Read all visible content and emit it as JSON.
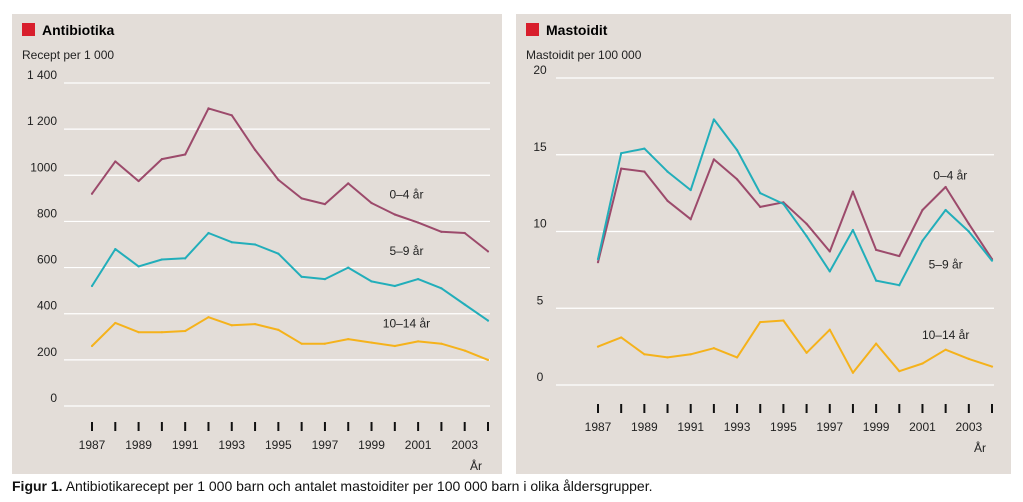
{
  "colors": {
    "series_0_4": "#9c4a6b",
    "series_5_9": "#22aeba",
    "series_10_14": "#f5b21b",
    "title_square": "#d81e2c",
    "gridline": "#ffffff",
    "panel_bg": "#e3ddd8"
  },
  "caption": {
    "label": "Figur 1.",
    "text": "Antibiotikarecept per 1 000 barn och antalet mastoiditer per 100 000 barn i olika åldersgrupper."
  },
  "chart_data": [
    {
      "type": "line",
      "title": "Antibiotika",
      "ylabel": "Recept per 1 000",
      "xlabel": "År",
      "ylim": [
        0,
        1400
      ],
      "yticks": [
        0,
        200,
        400,
        600,
        800,
        1000,
        1200,
        1400
      ],
      "ytick_labels": [
        "0",
        "200",
        "400",
        "600",
        "800",
        "1000",
        "1 200",
        "1 400"
      ],
      "xlim": [
        1987,
        2004
      ],
      "xtick_labels": [
        "1987",
        "1989",
        "1991",
        "1993",
        "1995",
        "1997",
        "1999",
        "2001",
        "2003"
      ],
      "x": [
        1987,
        1988,
        1989,
        1990,
        1991,
        1992,
        1993,
        1994,
        1995,
        1996,
        1997,
        1998,
        1999,
        2000,
        2001,
        2002,
        2003,
        2004
      ],
      "series": [
        {
          "name": "0–4 år",
          "color_key": "series_0_4",
          "values": [
            920,
            1060,
            975,
            1070,
            1090,
            1290,
            1260,
            1110,
            980,
            900,
            875,
            965,
            880,
            830,
            795,
            755,
            750,
            670
          ]
        },
        {
          "name": "5–9 år",
          "color_key": "series_5_9",
          "values": [
            520,
            680,
            605,
            635,
            640,
            750,
            710,
            700,
            660,
            560,
            550,
            600,
            540,
            520,
            550,
            510,
            440,
            370
          ]
        },
        {
          "name": "10–14 år",
          "color_key": "series_10_14",
          "values": [
            260,
            360,
            320,
            320,
            325,
            385,
            350,
            355,
            330,
            270,
            270,
            290,
            275,
            260,
            280,
            270,
            240,
            200
          ]
        }
      ],
      "series_label_anchor": [
        {
          "name": "0–4 år",
          "x": 2000.5,
          "y": 900
        },
        {
          "name": "5–9 år",
          "x": 2000.5,
          "y": 655
        },
        {
          "name": "10–14 år",
          "x": 2000.5,
          "y": 340
        }
      ]
    },
    {
      "type": "line",
      "title": "Mastoidit",
      "ylabel": "Mastoidit per 100 000",
      "xlabel": "År",
      "ylim": [
        0,
        20
      ],
      "yticks": [
        0,
        5,
        10,
        15,
        20
      ],
      "ytick_labels": [
        "0",
        "5",
        "10",
        "15",
        "20"
      ],
      "xlim": [
        1987,
        2004
      ],
      "xtick_labels": [
        "1987",
        "1989",
        "1991",
        "1993",
        "1995",
        "1997",
        "1999",
        "2001",
        "2003"
      ],
      "x": [
        1987,
        1988,
        1989,
        1990,
        1991,
        1992,
        1993,
        1994,
        1995,
        1996,
        1997,
        1998,
        1999,
        2000,
        2001,
        2002,
        2003,
        2004
      ],
      "series": [
        {
          "name": "0–4 år",
          "color_key": "series_0_4",
          "values": [
            8.0,
            14.1,
            13.9,
            12.0,
            10.8,
            14.7,
            13.4,
            11.6,
            11.9,
            10.5,
            8.7,
            12.6,
            8.8,
            8.4,
            11.4,
            12.9,
            10.5,
            8.2
          ]
        },
        {
          "name": "5–9 år",
          "color_key": "series_5_9",
          "values": [
            8.2,
            15.1,
            15.4,
            13.9,
            12.7,
            17.3,
            15.3,
            12.5,
            11.8,
            9.7,
            7.4,
            10.1,
            6.8,
            6.5,
            9.4,
            11.4,
            10.0,
            8.1
          ]
        },
        {
          "name": "10–14 år",
          "color_key": "series_10_14",
          "values": [
            2.5,
            3.1,
            2.0,
            1.8,
            2.0,
            2.4,
            1.8,
            4.1,
            4.2,
            2.1,
            3.6,
            0.8,
            2.7,
            0.9,
            1.4,
            2.3,
            1.7,
            1.2
          ]
        }
      ],
      "series_label_anchor": [
        {
          "name": "0–4 år",
          "x": 2002.2,
          "y": 13.4
        },
        {
          "name": "5–9 år",
          "x": 2002.0,
          "y": 7.6
        },
        {
          "name": "10–14 år",
          "x": 2002.0,
          "y": 3.0
        }
      ]
    }
  ]
}
